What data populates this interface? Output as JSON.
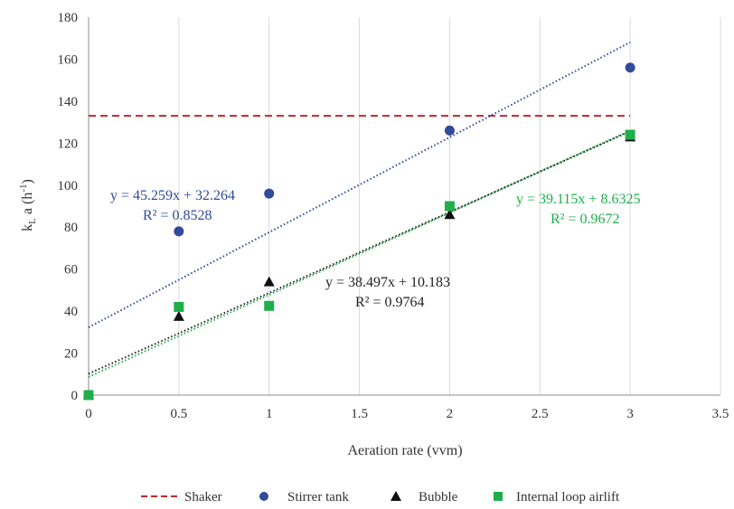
{
  "chart_data": {
    "type": "scatter",
    "xlabel": "Aeration rate (vvm)",
    "ylabel": {
      "main": "k",
      "sub": "L",
      "mid": " a (h",
      "sup": "-1",
      "tail": ")"
    },
    "xlim": [
      0,
      3.5
    ],
    "ylim": [
      0,
      180
    ],
    "xticks": [
      "0",
      "0.5",
      "1",
      "1.5",
      "2",
      "2.5",
      "3",
      "3.5"
    ],
    "yticks": [
      "0",
      "20",
      "40",
      "60",
      "80",
      "100",
      "120",
      "140",
      "160",
      "180"
    ],
    "grid": "vertical",
    "legend_position": "bottom",
    "series": [
      {
        "name": "Shaker",
        "kind": "dashed-line",
        "color": "#c0282d",
        "x": [
          0,
          3
        ],
        "y": [
          133,
          133
        ]
      },
      {
        "name": "Stirrer tank",
        "kind": "scatter",
        "marker": "circle",
        "color": "#2f4b9a",
        "x": [
          0.5,
          1,
          2,
          3
        ],
        "y": [
          78,
          96,
          126,
          156
        ],
        "trendline": {
          "slope": 45.259,
          "intercept": 32.264,
          "color": "#2f4b9a"
        }
      },
      {
        "name": "Bubble",
        "kind": "scatter",
        "marker": "triangle",
        "color": "#111111",
        "x": [
          0,
          0.5,
          1,
          2,
          3
        ],
        "y": [
          0,
          37.5,
          54,
          86,
          123
        ],
        "trendline": {
          "slope": 38.497,
          "intercept": 10.183,
          "color": "#222222"
        }
      },
      {
        "name": "Internal loop airlift",
        "kind": "scatter",
        "marker": "square",
        "color": "#1fae4b",
        "x": [
          0,
          0.5,
          1,
          2,
          3
        ],
        "y": [
          0,
          42,
          42.5,
          90,
          124
        ],
        "trendline": {
          "slope": 39.115,
          "intercept": 8.6325,
          "color": "#1fae4b"
        }
      }
    ],
    "annotations": [
      {
        "series": "Stirrer tank",
        "line1": "y = 45.259x + 32.264",
        "line2": "R² = 0.8528",
        "color": "#2f4b9a"
      },
      {
        "series": "Bubble",
        "line1": "y = 38.497x + 10.183",
        "line2": "R² = 0.9764",
        "color": "#222222"
      },
      {
        "series": "Internal loop airlift",
        "line1": "y = 39.115x + 8.6325",
        "line2": "R² = 0.9672",
        "color": "#1fae4b"
      }
    ]
  }
}
